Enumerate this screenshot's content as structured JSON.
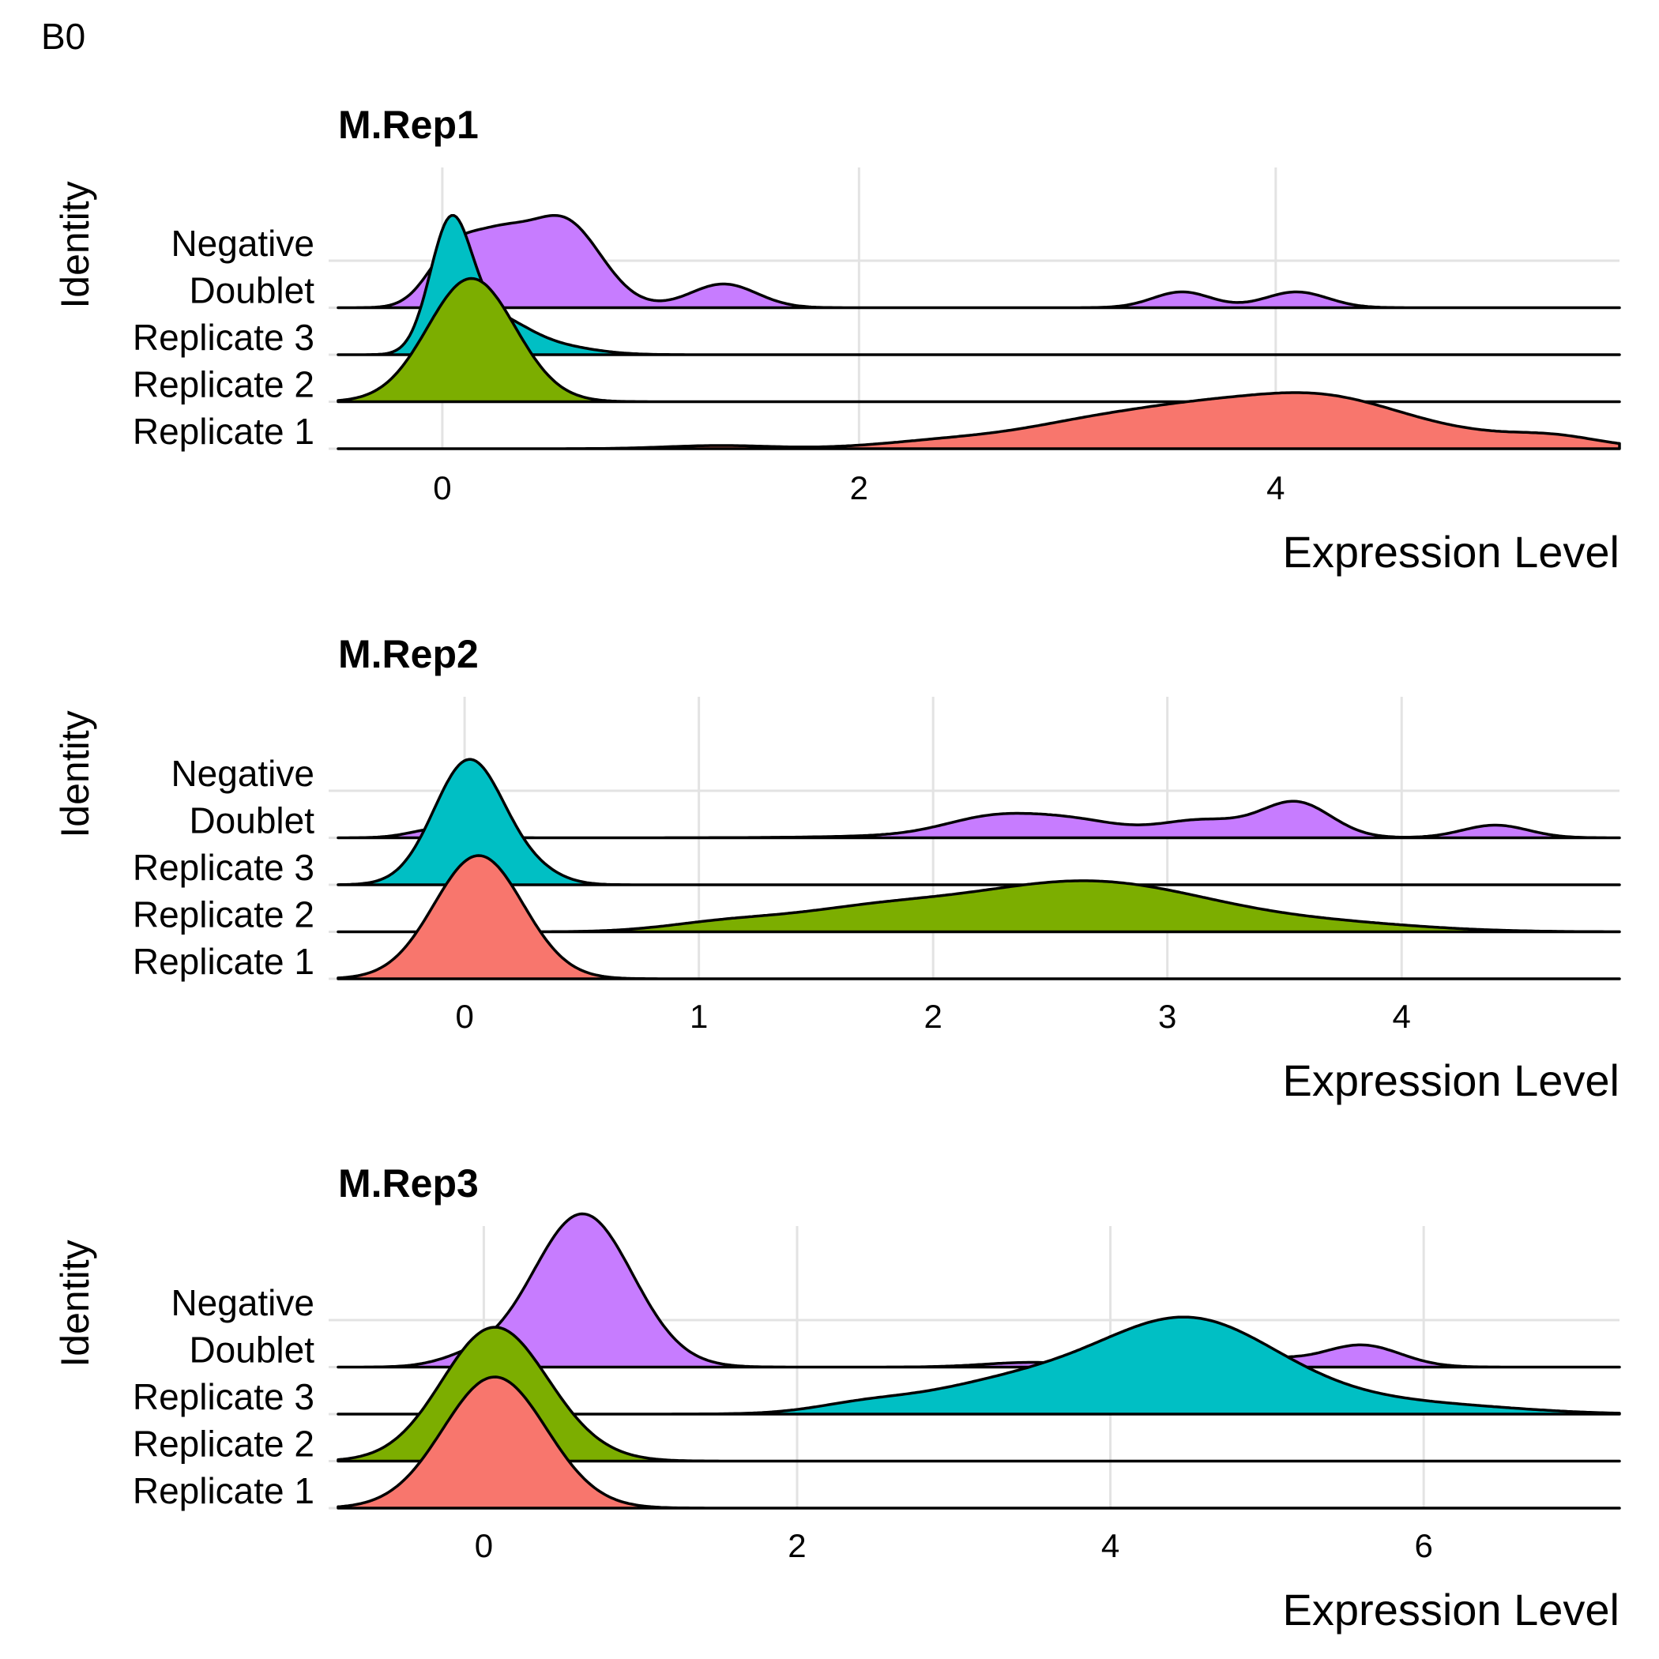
{
  "panel_label": "B0",
  "chart_data": [
    {
      "type": "ridgeline",
      "title": "M.Rep1",
      "xlabel": "Expression Level",
      "ylabel": "Identity",
      "categories": [
        "Replicate 1",
        "Replicate 2",
        "Replicate 3",
        "Doublet",
        "Negative"
      ],
      "xlim": [
        -0.5,
        5.65
      ],
      "xticks": [
        0,
        2,
        4
      ],
      "grid": true,
      "legend": "none",
      "series": [
        {
          "name": "Replicate 1",
          "color": "#F8766D",
          "peaks": [
            [
              1.33,
              0.25,
              0.02
            ],
            [
              2.5,
              0.35,
              0.06
            ],
            [
              3.05,
              0.3,
              0.1
            ],
            [
              3.55,
              0.35,
              0.2
            ],
            [
              4.2,
              0.38,
              0.29
            ],
            [
              4.9,
              0.45,
              0.08
            ],
            [
              5.35,
              0.2,
              0.04
            ]
          ]
        },
        {
          "name": "Replicate 2",
          "color": "#7CAE00",
          "peaks": [
            [
              0.14,
              0.21,
              0.78
            ]
          ]
        },
        {
          "name": "Replicate 3",
          "color": "#00BFC4",
          "peaks": [
            [
              0.04,
              0.1,
              0.8
            ],
            [
              0.25,
              0.15,
              0.2
            ],
            [
              0.5,
              0.2,
              0.06
            ]
          ]
        },
        {
          "name": "Doublet",
          "color": "#C77CFF",
          "peaks": [
            [
              0.04,
              0.12,
              0.3
            ],
            [
              0.26,
              0.14,
              0.35
            ],
            [
              0.58,
              0.18,
              0.55
            ],
            [
              1.35,
              0.16,
              0.15
            ],
            [
              3.55,
              0.14,
              0.1
            ],
            [
              4.1,
              0.15,
              0.1
            ]
          ]
        },
        {
          "name": "Negative",
          "color": "#E76BF3",
          "peaks": []
        }
      ]
    },
    {
      "type": "ridgeline",
      "title": "M.Rep2",
      "xlabel": "Expression Level",
      "ylabel": "Identity",
      "categories": [
        "Replicate 1",
        "Replicate 2",
        "Replicate 3",
        "Doublet",
        "Negative"
      ],
      "xlim": [
        -0.54,
        4.93
      ],
      "xticks": [
        0,
        1,
        2,
        3,
        4
      ],
      "grid": true,
      "legend": "none",
      "series": [
        {
          "name": "Replicate 1",
          "color": "#F8766D",
          "peaks": [
            [
              0.06,
              0.19,
              0.78
            ]
          ]
        },
        {
          "name": "Replicate 2",
          "color": "#7CAE00",
          "peaks": [
            [
              1.1,
              0.25,
              0.05
            ],
            [
              1.7,
              0.35,
              0.12
            ],
            [
              2.5,
              0.45,
              0.25
            ],
            [
              3.0,
              0.4,
              0.12
            ],
            [
              3.7,
              0.4,
              0.05
            ]
          ]
        },
        {
          "name": "Replicate 3",
          "color": "#00BFC4",
          "peaks": [
            [
              0.02,
              0.15,
              0.79
            ],
            [
              0.3,
              0.12,
              0.06
            ]
          ]
        },
        {
          "name": "Doublet",
          "color": "#C77CFF",
          "peaks": [
            [
              -0.1,
              0.12,
              0.06
            ],
            [
              2.25,
              0.2,
              0.1
            ],
            [
              2.6,
              0.2,
              0.08
            ],
            [
              3.15,
              0.18,
              0.1
            ],
            [
              3.55,
              0.15,
              0.22
            ],
            [
              4.4,
              0.14,
              0.08
            ],
            [
              2.4,
              0.5,
              0.03
            ]
          ]
        },
        {
          "name": "Negative",
          "color": "#E76BF3",
          "peaks": []
        }
      ]
    },
    {
      "type": "ridgeline",
      "title": "M.Rep3",
      "xlabel": "Expression Level",
      "ylabel": "Identity",
      "categories": [
        "Replicate 1",
        "Replicate 2",
        "Replicate 3",
        "Doublet",
        "Negative"
      ],
      "xlim": [
        -0.93,
        7.25
      ],
      "xticks": [
        0,
        2,
        4,
        6
      ],
      "grid": true,
      "legend": "none",
      "series": [
        {
          "name": "Replicate 1",
          "color": "#F8766D",
          "peaks": [
            [
              0.07,
              0.33,
              0.83
            ]
          ]
        },
        {
          "name": "Replicate 2",
          "color": "#7CAE00",
          "peaks": [
            [
              0.06,
              0.33,
              0.83
            ],
            [
              0.5,
              0.3,
              0.05
            ]
          ]
        },
        {
          "name": "Replicate 3",
          "color": "#00BFC4",
          "peaks": [
            [
              2.4,
              0.3,
              0.04
            ],
            [
              3.4,
              0.6,
              0.2
            ],
            [
              4.5,
              0.55,
              0.55
            ],
            [
              5.4,
              0.6,
              0.08
            ],
            [
              6.3,
              0.5,
              0.03
            ]
          ]
        },
        {
          "name": "Doublet",
          "color": "#C77CFF",
          "peaks": [
            [
              -0.1,
              0.2,
              0.05
            ],
            [
              0.63,
              0.32,
              0.97
            ],
            [
              3.5,
              0.3,
              0.03
            ],
            [
              5.0,
              0.2,
              0.05
            ],
            [
              5.6,
              0.25,
              0.14
            ]
          ]
        },
        {
          "name": "Negative",
          "color": "#E76BF3",
          "peaks": []
        }
      ]
    }
  ]
}
